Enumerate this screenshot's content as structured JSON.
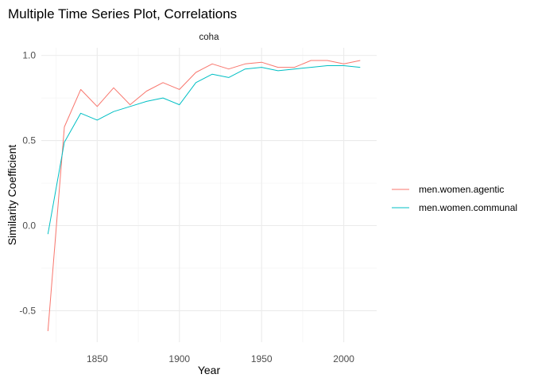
{
  "chart_data": {
    "type": "line",
    "title": "Multiple Time Series Plot, Correlations",
    "facet_label": "coha",
    "xlabel": "Year",
    "ylabel": "Similarity Coefficient",
    "xlim": [
      1816,
      2020
    ],
    "ylim": [
      -0.685,
      1.045
    ],
    "x_ticks": [
      1850,
      1900,
      1950,
      2000
    ],
    "x_tick_labels": [
      "1850",
      "1900",
      "1950",
      "2000"
    ],
    "y_ticks": [
      -0.5,
      0.0,
      0.5,
      1.0
    ],
    "y_tick_labels": [
      "-0.5",
      "0.0",
      "0.5",
      "1.0"
    ],
    "grid": true,
    "legend_position": "right",
    "x": [
      1820,
      1830,
      1840,
      1850,
      1860,
      1870,
      1880,
      1890,
      1900,
      1910,
      1920,
      1930,
      1940,
      1950,
      1960,
      1970,
      1980,
      1990,
      2000,
      2010
    ],
    "series": [
      {
        "name": "men.women.agentic",
        "color": "#F8766D",
        "values": [
          -0.62,
          0.58,
          0.8,
          0.7,
          0.81,
          0.71,
          0.79,
          0.84,
          0.8,
          0.9,
          0.95,
          0.92,
          0.95,
          0.96,
          0.93,
          0.93,
          0.97,
          0.97,
          0.95,
          0.97
        ]
      },
      {
        "name": "men.women.communal",
        "color": "#00BFC4",
        "values": [
          -0.05,
          0.49,
          0.66,
          0.62,
          0.67,
          0.7,
          0.73,
          0.75,
          0.71,
          0.84,
          0.89,
          0.87,
          0.92,
          0.93,
          0.91,
          0.92,
          0.93,
          0.94,
          0.94,
          0.93
        ]
      }
    ]
  }
}
